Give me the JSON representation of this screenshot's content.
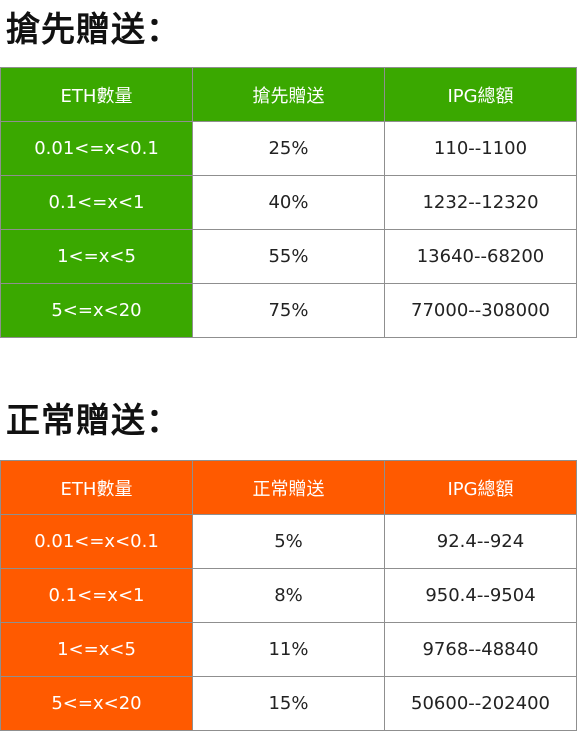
{
  "colors": {
    "green": "#3aa800",
    "orange": "#ff5a00",
    "white": "#ffffff",
    "border": "#8f8f8f",
    "text": "#222222"
  },
  "sections": [
    {
      "title": "搶先贈送：",
      "accent": "#3aa800",
      "headers": [
        "ETH數量",
        "搶先贈送",
        "IPG總額"
      ],
      "rows": [
        [
          "0.01<=x<0.1",
          "25%",
          "110--1100"
        ],
        [
          "0.1<=x<1",
          "40%",
          "1232--12320"
        ],
        [
          "1<=x<5",
          "55%",
          "13640--68200"
        ],
        [
          "5<=x<20",
          "75%",
          "77000--308000"
        ]
      ]
    },
    {
      "title": "正常贈送：",
      "accent": "#ff5a00",
      "headers": [
        "ETH數量",
        "正常贈送",
        "IPG總額"
      ],
      "rows": [
        [
          "0.01<=x<0.1",
          "5%",
          "92.4--924"
        ],
        [
          "0.1<=x<1",
          "8%",
          "950.4--9504"
        ],
        [
          "1<=x<5",
          "11%",
          "9768--48840"
        ],
        [
          "5<=x<20",
          "15%",
          "50600--202400"
        ]
      ]
    }
  ]
}
